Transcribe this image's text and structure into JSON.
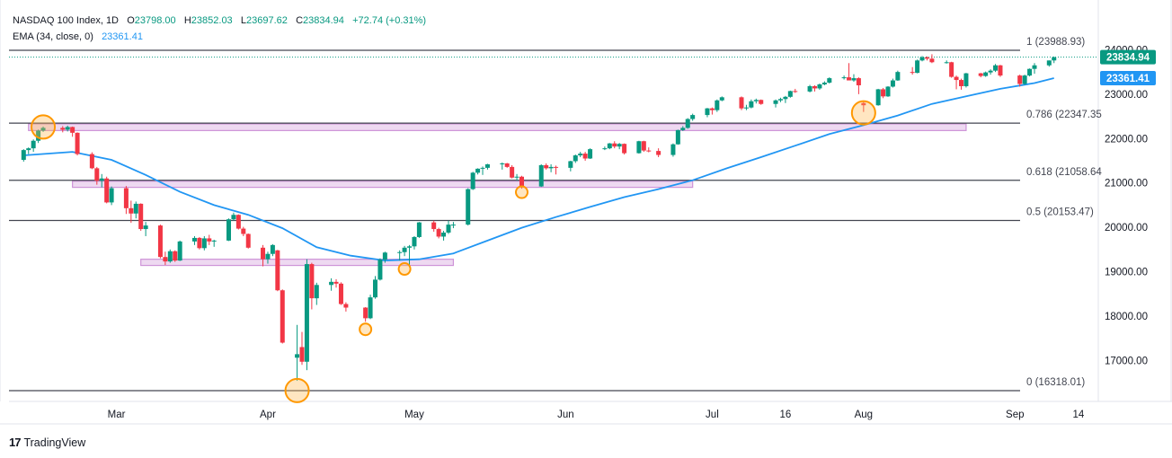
{
  "legend": {
    "symbol": "NASDAQ 100 Index, 1D",
    "o_label": "O",
    "o": "23798.00",
    "h_label": "H",
    "h": "23852.03",
    "l_label": "L",
    "l": "23697.62",
    "c_label": "C",
    "c": "23834.94",
    "change": "+72.74 (+0.31%)",
    "ema_label": "EMA (34, close, 0)",
    "ema_value": "23361.41"
  },
  "footer": {
    "brand": "TradingView",
    "logo": "17"
  },
  "colors": {
    "up": "#089981",
    "down": "#f23645",
    "ema": "#2196f3",
    "zone": "#ce93d8",
    "marker": "#ff9800"
  },
  "chart_data": {
    "type": "candlestick",
    "title": "NASDAQ 100 Index, 1D",
    "y_ticks": [
      "24000.00",
      "23000.00",
      "22000.00",
      "21000.00",
      "20000.00",
      "19000.00",
      "18000.00",
      "17000.00"
    ],
    "x_ticks": [
      "Mar",
      "Apr",
      "May",
      "Jun",
      "Jul",
      "16",
      "Aug",
      "Sep",
      "14"
    ],
    "price_tags": [
      {
        "value": 23834.94,
        "label": "23834.94",
        "color": "#089981"
      },
      {
        "value": 23361.41,
        "label": "23361.41",
        "color": "#2196f3"
      }
    ],
    "fib_levels": [
      {
        "label": "1 (23988.93)",
        "value": 23988.93
      },
      {
        "label": "0.786 (22347.35",
        "value": 22347.35
      },
      {
        "label": "0.618 (21058.64",
        "value": 21058.64
      },
      {
        "label": "0.5 (20153.47)",
        "value": 20153.47
      },
      {
        "label": "0 (16318.01)",
        "value": 16318.01
      }
    ],
    "zones": [
      {
        "from": "2025-02-11",
        "to": "2025-08-22",
        "low": 22180,
        "high": 22330
      },
      {
        "from": "2025-02-20",
        "to": "2025-06-27",
        "low": 20900,
        "high": 21040
      },
      {
        "from": "2025-03-06",
        "to": "2025-05-09",
        "low": 19140,
        "high": 19280
      }
    ],
    "markers": [
      {
        "date": "2025-02-14",
        "price": 22260,
        "size": "large"
      },
      {
        "date": "2025-04-07",
        "price": 16320,
        "size": "large"
      },
      {
        "date": "2025-04-21",
        "price": 17700,
        "size": "small"
      },
      {
        "date": "2025-04-29",
        "price": 19060,
        "size": "small"
      },
      {
        "date": "2025-05-23",
        "price": 20790,
        "size": "small"
      },
      {
        "date": "2025-08-01",
        "price": 22580,
        "size": "large"
      }
    ],
    "candles": [
      [
        "2025-02-10",
        21520,
        21760,
        21480,
        21740
      ],
      [
        "2025-02-11",
        21740,
        21800,
        21650,
        21780
      ],
      [
        "2025-02-12",
        21780,
        21980,
        21700,
        21950
      ],
      [
        "2025-02-13",
        21950,
        22200,
        21900,
        22180
      ],
      [
        "2025-02-14",
        22180,
        22270,
        22150,
        22240
      ],
      [
        "2025-02-18",
        22240,
        22280,
        22140,
        22200
      ],
      [
        "2025-02-19",
        22200,
        22290,
        22160,
        22260
      ],
      [
        "2025-02-20",
        22260,
        22270,
        22040,
        22130
      ],
      [
        "2025-02-21",
        22130,
        22140,
        21620,
        21650
      ],
      [
        "2025-02-24",
        21650,
        21690,
        21310,
        21330
      ],
      [
        "2025-02-25",
        21330,
        21360,
        20960,
        21050
      ],
      [
        "2025-02-26",
        21050,
        21200,
        20900,
        21100
      ],
      [
        "2025-02-27",
        21100,
        21140,
        20540,
        20560
      ],
      [
        "2025-02-28",
        20560,
        20920,
        20500,
        20880
      ],
      [
        "2025-03-03",
        20880,
        20930,
        20300,
        20430
      ],
      [
        "2025-03-04",
        20430,
        20600,
        20100,
        20310
      ],
      [
        "2025-03-05",
        20310,
        20580,
        20200,
        20530
      ],
      [
        "2025-03-06",
        20530,
        20540,
        19920,
        19960
      ],
      [
        "2025-03-07",
        19960,
        20120,
        19800,
        20040
      ],
      [
        "2025-03-10",
        20040,
        20060,
        19300,
        19330
      ],
      [
        "2025-03-11",
        19330,
        19450,
        19150,
        19230
      ],
      [
        "2025-03-12",
        19230,
        19500,
        19200,
        19460
      ],
      [
        "2025-03-13",
        19460,
        19480,
        19220,
        19250
      ],
      [
        "2025-03-14",
        19250,
        19700,
        19240,
        19680
      ],
      [
        "2025-03-17",
        19680,
        19800,
        19600,
        19760
      ],
      [
        "2025-03-18",
        19760,
        19780,
        19500,
        19530
      ],
      [
        "2025-03-19",
        19530,
        19800,
        19480,
        19750
      ],
      [
        "2025-03-20",
        19750,
        19830,
        19600,
        19680
      ],
      [
        "2025-03-21",
        19680,
        19720,
        19560,
        19700
      ],
      [
        "2025-03-24",
        19700,
        20200,
        19690,
        20180
      ],
      [
        "2025-03-25",
        20180,
        20330,
        20150,
        20280
      ],
      [
        "2025-03-26",
        20280,
        20290,
        19950,
        19970
      ],
      [
        "2025-03-27",
        19970,
        20010,
        19800,
        19850
      ],
      [
        "2025-03-28",
        19850,
        19860,
        19520,
        19540
      ],
      [
        "2025-03-31",
        19540,
        19600,
        19120,
        19280
      ],
      [
        "2025-04-01",
        19280,
        19450,
        19180,
        19400
      ],
      [
        "2025-04-02",
        19400,
        19620,
        19350,
        19600
      ],
      [
        "2025-04-03",
        19480,
        19490,
        18560,
        18580
      ],
      [
        "2025-04-04",
        18580,
        18600,
        17380,
        17400
      ],
      [
        "2025-04-07",
        17060,
        17800,
        16540,
        17140
      ],
      [
        "2025-04-08",
        17300,
        17640,
        16900,
        16970
      ],
      [
        "2025-04-09",
        16970,
        19280,
        16780,
        19170
      ],
      [
        "2025-04-10",
        19170,
        19200,
        18150,
        18400
      ],
      [
        "2025-04-11",
        18400,
        18750,
        18250,
        18700
      ],
      [
        "2025-04-14",
        18700,
        18850,
        18570,
        18770
      ],
      [
        "2025-04-15",
        18770,
        18830,
        18640,
        18730
      ],
      [
        "2025-04-16",
        18730,
        18760,
        18250,
        18270
      ],
      [
        "2025-04-17",
        18270,
        18310,
        18100,
        18190
      ],
      [
        "2025-04-21",
        18190,
        18200,
        17870,
        17950
      ],
      [
        "2025-04-22",
        17950,
        18480,
        17930,
        18420
      ],
      [
        "2025-04-23",
        18420,
        18900,
        18390,
        18820
      ],
      [
        "2025-04-24",
        18820,
        19300,
        18800,
        19270
      ],
      [
        "2025-04-25",
        19270,
        19450,
        19200,
        19430
      ],
      [
        "2025-04-28",
        19430,
        19480,
        19250,
        19440
      ],
      [
        "2025-04-29",
        19440,
        19580,
        19350,
        19540
      ],
      [
        "2025-04-30",
        19540,
        19600,
        19100,
        19570
      ],
      [
        "2025-05-01",
        19570,
        19800,
        19500,
        19780
      ],
      [
        "2025-05-02",
        19780,
        20120,
        19760,
        20110
      ],
      [
        "2025-05-05",
        20110,
        20150,
        19900,
        19960
      ],
      [
        "2025-05-06",
        19960,
        19990,
        19750,
        19790
      ],
      [
        "2025-05-07",
        19790,
        19920,
        19700,
        19880
      ],
      [
        "2025-05-08",
        19880,
        20150,
        19850,
        20060
      ],
      [
        "2025-05-09",
        20060,
        20120,
        19980,
        20060
      ],
      [
        "2025-05-12",
        20060,
        20880,
        20040,
        20860
      ],
      [
        "2025-05-13",
        20860,
        21250,
        20840,
        21230
      ],
      [
        "2025-05-14",
        21230,
        21330,
        21190,
        21320
      ],
      [
        "2025-05-15",
        21320,
        21370,
        21180,
        21340
      ],
      [
        "2025-05-16",
        21340,
        21430,
        21300,
        21420
      ],
      [
        "2025-05-19",
        21420,
        21460,
        21300,
        21440
      ],
      [
        "2025-05-20",
        21440,
        21450,
        21340,
        21360
      ],
      [
        "2025-05-21",
        21360,
        21400,
        21100,
        21120
      ],
      [
        "2025-05-22",
        21120,
        21200,
        21050,
        21140
      ],
      [
        "2025-05-23",
        21140,
        21160,
        20870,
        20920
      ],
      [
        "2025-05-27",
        20920,
        21420,
        20910,
        21400
      ],
      [
        "2025-05-28",
        21400,
        21440,
        21300,
        21330
      ],
      [
        "2025-05-29",
        21330,
        21420,
        21240,
        21360
      ],
      [
        "2025-05-30",
        21360,
        21390,
        21190,
        21340
      ],
      [
        "2025-06-02",
        21340,
        21500,
        21260,
        21490
      ],
      [
        "2025-06-03",
        21490,
        21640,
        21450,
        21620
      ],
      [
        "2025-06-04",
        21620,
        21700,
        21580,
        21660
      ],
      [
        "2025-06-05",
        21660,
        21700,
        21500,
        21550
      ],
      [
        "2025-06-06",
        21550,
        21780,
        21540,
        21760
      ],
      [
        "2025-06-09",
        21760,
        21820,
        21740,
        21780
      ],
      [
        "2025-06-10",
        21780,
        21900,
        21760,
        21890
      ],
      [
        "2025-06-11",
        21890,
        21940,
        21780,
        21820
      ],
      [
        "2025-06-12",
        21820,
        21900,
        21760,
        21880
      ],
      [
        "2025-06-13",
        21880,
        21890,
        21640,
        21670
      ],
      [
        "2025-06-16",
        21670,
        21950,
        21660,
        21940
      ],
      [
        "2025-06-17",
        21940,
        21950,
        21700,
        21730
      ],
      [
        "2025-06-18",
        21730,
        21800,
        21690,
        21720
      ],
      [
        "2025-06-20",
        21720,
        21780,
        21580,
        21630
      ],
      [
        "2025-06-23",
        21630,
        21890,
        21590,
        21870
      ],
      [
        "2025-06-24",
        21870,
        22200,
        21860,
        22190
      ],
      [
        "2025-06-25",
        22190,
        22280,
        22170,
        22240
      ],
      [
        "2025-06-26",
        22240,
        22460,
        22220,
        22440
      ],
      [
        "2025-06-27",
        22440,
        22560,
        22400,
        22530
      ],
      [
        "2025-06-30",
        22530,
        22690,
        22480,
        22680
      ],
      [
        "2025-07-01",
        22680,
        22700,
        22540,
        22640
      ],
      [
        "2025-07-02",
        22640,
        22880,
        22600,
        22860
      ],
      [
        "2025-07-03",
        22860,
        22950,
        22840,
        22930
      ],
      [
        "2025-07-07",
        22930,
        22950,
        22640,
        22680
      ],
      [
        "2025-07-08",
        22680,
        22760,
        22640,
        22700
      ],
      [
        "2025-07-09",
        22700,
        22880,
        22680,
        22840
      ],
      [
        "2025-07-10",
        22840,
        22900,
        22790,
        22870
      ],
      [
        "2025-07-11",
        22870,
        22880,
        22760,
        22780
      ],
      [
        "2025-07-14",
        22780,
        22880,
        22700,
        22860
      ],
      [
        "2025-07-15",
        22860,
        22920,
        22820,
        22890
      ],
      [
        "2025-07-16",
        22890,
        22960,
        22800,
        22940
      ],
      [
        "2025-07-17",
        22940,
        23080,
        22920,
        23070
      ],
      [
        "2025-07-18",
        23070,
        23120,
        23030,
        23060
      ],
      [
        "2025-07-21",
        23060,
        23210,
        23040,
        23180
      ],
      [
        "2025-07-22",
        23180,
        23200,
        23060,
        23130
      ],
      [
        "2025-07-23",
        23130,
        23240,
        23100,
        23220
      ],
      [
        "2025-07-24",
        23220,
        23290,
        23200,
        23260
      ],
      [
        "2025-07-25",
        23260,
        23380,
        23240,
        23360
      ],
      [
        "2025-07-28",
        23360,
        23420,
        23330,
        23380
      ],
      [
        "2025-07-29",
        23380,
        23700,
        23340,
        23310
      ],
      [
        "2025-07-30",
        23310,
        23450,
        23280,
        23360
      ],
      [
        "2025-07-31",
        23360,
        23380,
        23000,
        23200
      ],
      [
        "2025-08-01",
        22800,
        22830,
        22600,
        22750
      ],
      [
        "2025-08-04",
        22750,
        23120,
        22740,
        23110
      ],
      [
        "2025-08-05",
        23110,
        23140,
        22910,
        22950
      ],
      [
        "2025-08-06",
        22950,
        23180,
        22940,
        23170
      ],
      [
        "2025-08-07",
        23170,
        23350,
        23150,
        23310
      ],
      [
        "2025-08-08",
        23310,
        23530,
        23300,
        23500
      ],
      [
        "2025-08-11",
        23500,
        23610,
        23440,
        23480
      ],
      [
        "2025-08-12",
        23480,
        23780,
        23470,
        23760
      ],
      [
        "2025-08-13",
        23760,
        23860,
        23740,
        23830
      ],
      [
        "2025-08-14",
        23830,
        23850,
        23760,
        23800
      ],
      [
        "2025-08-15",
        23800,
        23900,
        23700,
        23720
      ],
      [
        "2025-08-18",
        23720,
        23760,
        23690,
        23720
      ],
      [
        "2025-08-19",
        23720,
        23730,
        23370,
        23390
      ],
      [
        "2025-08-20",
        23390,
        23420,
        23110,
        23320
      ],
      [
        "2025-08-21",
        23320,
        23350,
        23100,
        23180
      ],
      [
        "2025-08-22",
        23180,
        23480,
        23150,
        23470
      ],
      [
        "2025-08-25",
        23470,
        23480,
        23380,
        23410
      ],
      [
        "2025-08-26",
        23410,
        23510,
        23390,
        23490
      ],
      [
        "2025-08-27",
        23490,
        23560,
        23440,
        23530
      ],
      [
        "2025-08-28",
        23530,
        23680,
        23500,
        23650
      ],
      [
        "2025-08-29",
        23650,
        23660,
        23390,
        23420
      ],
      [
        "2025-09-02",
        23420,
        23440,
        23170,
        23230
      ],
      [
        "2025-09-03",
        23230,
        23440,
        23210,
        23420
      ],
      [
        "2025-09-04",
        23420,
        23580,
        23400,
        23570
      ],
      [
        "2025-09-05",
        23570,
        23700,
        23460,
        23650
      ],
      [
        "2025-09-08",
        23650,
        23760,
        23620,
        23760
      ],
      [
        "2025-09-09",
        23760,
        23850,
        23700,
        23830
      ]
    ],
    "ema": [
      [
        "2025-02-10",
        21620
      ],
      [
        "2025-02-20",
        21700
      ],
      [
        "2025-02-28",
        21520
      ],
      [
        "2025-03-07",
        21180
      ],
      [
        "2025-03-14",
        20800
      ],
      [
        "2025-03-21",
        20500
      ],
      [
        "2025-03-28",
        20280
      ],
      [
        "2025-04-04",
        19980
      ],
      [
        "2025-04-11",
        19550
      ],
      [
        "2025-04-18",
        19360
      ],
      [
        "2025-04-25",
        19250
      ],
      [
        "2025-05-02",
        19280
      ],
      [
        "2025-05-09",
        19410
      ],
      [
        "2025-05-16",
        19700
      ],
      [
        "2025-05-23",
        19990
      ],
      [
        "2025-05-30",
        20230
      ],
      [
        "2025-06-06",
        20460
      ],
      [
        "2025-06-13",
        20680
      ],
      [
        "2025-06-20",
        20860
      ],
      [
        "2025-06-27",
        21060
      ],
      [
        "2025-07-04",
        21330
      ],
      [
        "2025-07-11",
        21580
      ],
      [
        "2025-07-18",
        21840
      ],
      [
        "2025-07-25",
        22100
      ],
      [
        "2025-08-01",
        22300
      ],
      [
        "2025-08-08",
        22520
      ],
      [
        "2025-08-15",
        22780
      ],
      [
        "2025-08-22",
        22950
      ],
      [
        "2025-08-29",
        23120
      ],
      [
        "2025-09-05",
        23250
      ],
      [
        "2025-09-09",
        23361.41
      ]
    ]
  }
}
